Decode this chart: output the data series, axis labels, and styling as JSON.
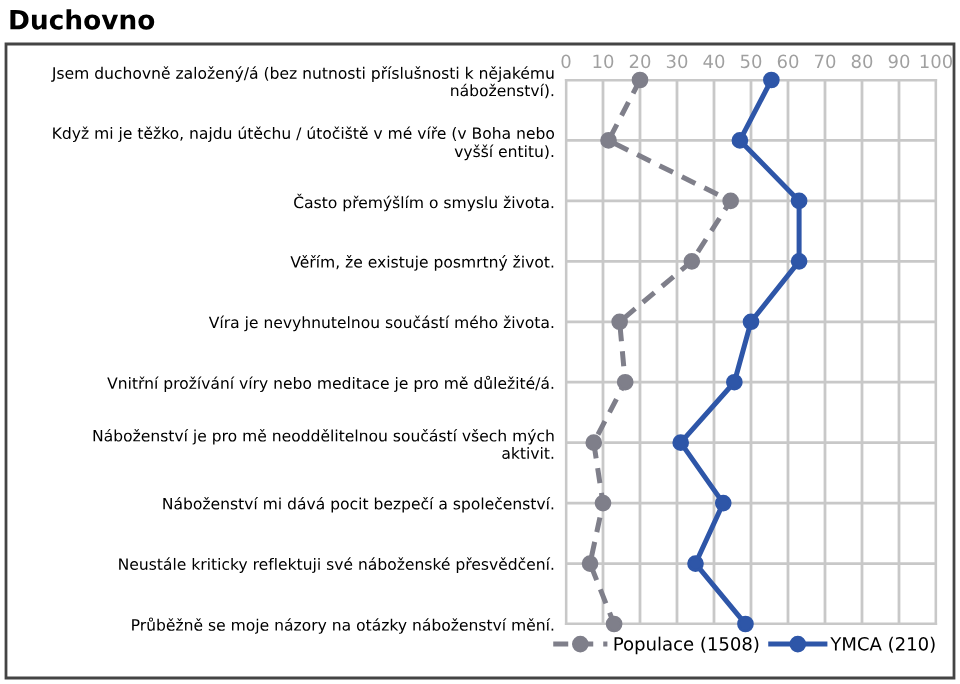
{
  "chart_data": {
    "type": "line",
    "orientation": "horizontal",
    "title": "Duchovno",
    "categories": [
      "Jsem duchovně založený/á (bez nutnosti příslušnosti k nějakému\nnáboženství).",
      "Když mi je těžko, najdu útěchu / útočiště v mé víře (v Boha nebo\nvyšší entitu).",
      "Často přemýšlím o smyslu života.",
      "Věřím, že existuje posmrtný život.",
      "Víra je nevyhnutelnou součástí mého života.",
      "Vnitřní prožívání víry nebo meditace je pro mě důležité/á.",
      "Náboženství je pro mě neoddělitelnou součástí všech mých\naktivit.",
      "Náboženství mi dává pocit bezpečí a společenství.",
      "Neustále kriticky reflektuji své náboženské přesvědčení.",
      "Průběžně se moje názory na otázky náboženství mění."
    ],
    "series": [
      {
        "name": "Populace (1508)",
        "color": "#7f7f8a",
        "line_style": "dashed",
        "values": [
          20,
          11.5,
          44.5,
          34,
          14.5,
          16,
          7.5,
          10,
          6.5,
          13
        ]
      },
      {
        "name": "YMCA (210)",
        "color": "#2e56a8",
        "line_style": "solid",
        "values": [
          55.5,
          47,
          63,
          63,
          50,
          45.5,
          31,
          42.5,
          35,
          48.5
        ]
      }
    ],
    "xlim": [
      0,
      100
    ],
    "xticks": [
      0,
      10,
      20,
      30,
      40,
      50,
      60,
      70,
      80,
      90,
      100
    ],
    "grid": true,
    "legend": "bottom right",
    "marker": "circle"
  }
}
